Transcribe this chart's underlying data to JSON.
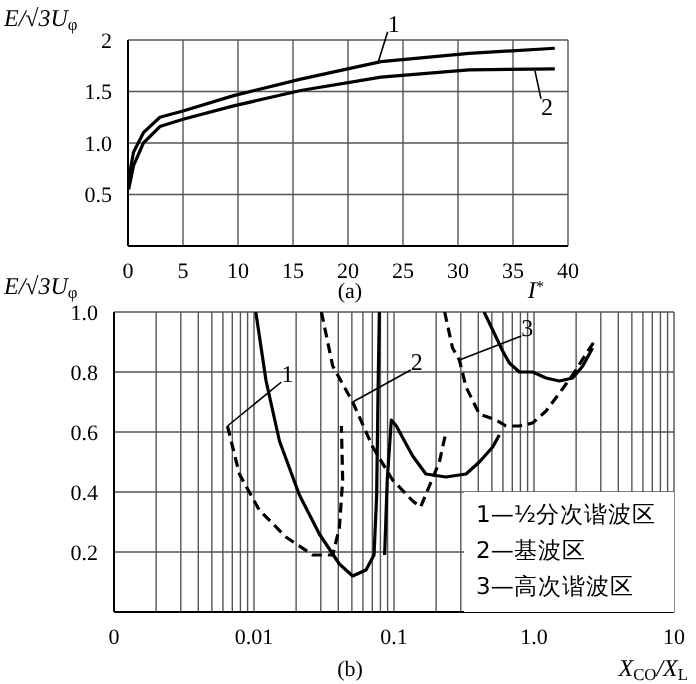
{
  "chart_data": [
    {
      "type": "line",
      "title": "(a)",
      "xlabel": "I$^{*}$",
      "ylabel": "E/√3U$_{φ}$",
      "xlim": [
        0,
        40
      ],
      "xticks": [
        0,
        5,
        10,
        15,
        20,
        25,
        30,
        35,
        40
      ],
      "ylim": [
        0,
        2
      ],
      "yticks": [
        0.5,
        {
          "value": 1,
          "label": "1.0"
        },
        1.5,
        2
      ],
      "grid": true,
      "series": [
        {
          "color": "#000000",
          "line_style": "solid",
          "x": [
            0.06,
            0.5,
            1.4,
            2.9,
            5,
            9.6,
            15.7,
            23,
            31,
            38.8
          ],
          "values": [
            0.65,
            0.91,
            1.1,
            1.25,
            1.31,
            1.46,
            1.62,
            1.79,
            1.87,
            1.92
          ]
        },
        {
          "color": "#000000",
          "line_style": "solid",
          "x": [
            0.06,
            0.5,
            1.4,
            2.9,
            5,
            9.6,
            15.7,
            23,
            31,
            38.8
          ],
          "values": [
            0.55,
            0.78,
            1.0,
            1.16,
            1.23,
            1.36,
            1.51,
            1.64,
            1.71,
            1.72
          ]
        }
      ],
      "annotations": [
        {
          "text": "1",
          "x": 22.7,
          "y": 1.77
        },
        {
          "text": "2",
          "x": 37,
          "y": 1.7
        }
      ]
    },
    {
      "type": "line",
      "title": "(b)",
      "xlabel": "X$_{CO}$/X$_{L}$",
      "ylabel": "E/√3U$_{φ}$",
      "log": "x",
      "xlim": [
        0.001,
        10
      ],
      "xticks": [
        {
          "value": 0.001,
          "label": "0"
        },
        {
          "value": 0.002,
          "label": null
        },
        {
          "value": 0.003,
          "label": null
        },
        {
          "value": 0.004,
          "label": null
        },
        {
          "value": 0.005,
          "label": null
        },
        {
          "value": 0.006,
          "label": null
        },
        {
          "value": 0.007,
          "label": null
        },
        {
          "value": 0.008,
          "label": null
        },
        {
          "value": 0.009,
          "label": null
        },
        0.01,
        {
          "value": 0.02,
          "label": null
        },
        {
          "value": 0.03,
          "label": null
        },
        {
          "value": 0.04,
          "label": null
        },
        {
          "value": 0.05,
          "label": null
        },
        {
          "value": 0.06,
          "label": null
        },
        {
          "value": 0.07,
          "label": null
        },
        {
          "value": 0.08,
          "label": null
        },
        {
          "value": 0.09,
          "label": null
        },
        0.1,
        {
          "value": 0.2,
          "label": null
        },
        {
          "value": 0.3,
          "label": null
        },
        {
          "value": 0.4,
          "label": null
        },
        {
          "value": 0.5,
          "label": null
        },
        {
          "value": 0.6,
          "label": null
        },
        {
          "value": 0.7,
          "label": null
        },
        {
          "value": 0.8,
          "label": null
        },
        {
          "value": 0.9,
          "label": null
        },
        {
          "value": 1,
          "label": "1.0"
        },
        {
          "value": 2,
          "label": null
        },
        {
          "value": 3,
          "label": null
        },
        {
          "value": 4,
          "label": null
        },
        {
          "value": 5,
          "label": null
        },
        {
          "value": 6,
          "label": null
        },
        {
          "value": 7,
          "label": null
        },
        {
          "value": 8,
          "label": null
        },
        {
          "value": 9,
          "label": null
        },
        10
      ],
      "ylim": [
        0,
        1
      ],
      "yticks": [
        0.2,
        0.4,
        0.6,
        0.8,
        {
          "value": 1,
          "label": "1.0"
        }
      ],
      "grid": true,
      "series": [
        {
          "color": "#000000",
          "line_style": "solid",
          "x": [
            0.0103,
            0.0122,
            0.0152,
            0.0211,
            0.0293,
            0.0407,
            0.0507,
            0.0631,
            0.072,
            0.0752,
            0.0769,
            0.0786
          ],
          "values": [
            1.0,
            0.77,
            0.57,
            0.39,
            0.26,
            0.16,
            0.12,
            0.14,
            0.19,
            0.39,
            0.73,
            1.0
          ]
        },
        {
          "color": "#000000",
          "line_style": "solid",
          "x": [
            0.0857,
            0.0895,
            0.0957,
            0.104,
            0.122,
            0.136,
            0.169,
            0.235,
            0.327,
            0.407,
            0.507,
            0.565
          ],
          "values": [
            0.19,
            0.44,
            0.64,
            0.62,
            0.56,
            0.52,
            0.46,
            0.45,
            0.46,
            0.5,
            0.55,
            0.59
          ]
        },
        {
          "color": "#000000",
          "line_style": "solid",
          "x": [
            0.44,
            0.507,
            0.597,
            0.667,
            0.786,
            0.977,
            1.22,
            1.52,
            1.89,
            2.23,
            2.62
          ],
          "values": [
            1.0,
            0.94,
            0.87,
            0.83,
            0.8,
            0.8,
            0.78,
            0.77,
            0.78,
            0.82,
            0.88
          ]
        },
        {
          "color": "#000000",
          "line_style": "dashed",
          "x": [
            0.00646,
            0.00786,
            0.0109,
            0.0169,
            0.0263,
            0.0365,
            0.0407,
            0.043,
            0.0421
          ],
          "values": [
            0.62,
            0.46,
            0.34,
            0.25,
            0.19,
            0.19,
            0.28,
            0.44,
            0.62
          ]
        },
        {
          "color": "#000000",
          "line_style": "dashed",
          "x": [
            0.0303,
            0.0365,
            0.0507,
            0.0705,
            0.0977,
            0.136,
            0.155,
            0.179,
            0.211,
            0.235
          ],
          "values": [
            1.0,
            0.82,
            0.7,
            0.55,
            0.44,
            0.37,
            0.35,
            0.42,
            0.5,
            0.6
          ]
        },
        {
          "color": "#000000",
          "line_style": "dashed",
          "x": [
            0.23,
            0.262,
            0.293,
            0.327,
            0.407,
            0.535,
            0.631,
            0.786,
            0.977,
            1.22,
            1.52,
            1.89,
            2.35,
            2.68
          ],
          "values": [
            1.0,
            0.88,
            0.84,
            0.75,
            0.66,
            0.64,
            0.62,
            0.62,
            0.63,
            0.67,
            0.73,
            0.79,
            0.86,
            0.9
          ]
        }
      ],
      "annotations": [
        {
          "text": "1",
          "x": 0.00646,
          "y": 0.62
        },
        {
          "text": "2",
          "x": 0.0507,
          "y": 0.7
        },
        {
          "text": "3",
          "x": 0.293,
          "y": 0.84
        },
        "1—½分次谐波区",
        "2—基波区",
        "3—高次谐波区"
      ]
    }
  ]
}
